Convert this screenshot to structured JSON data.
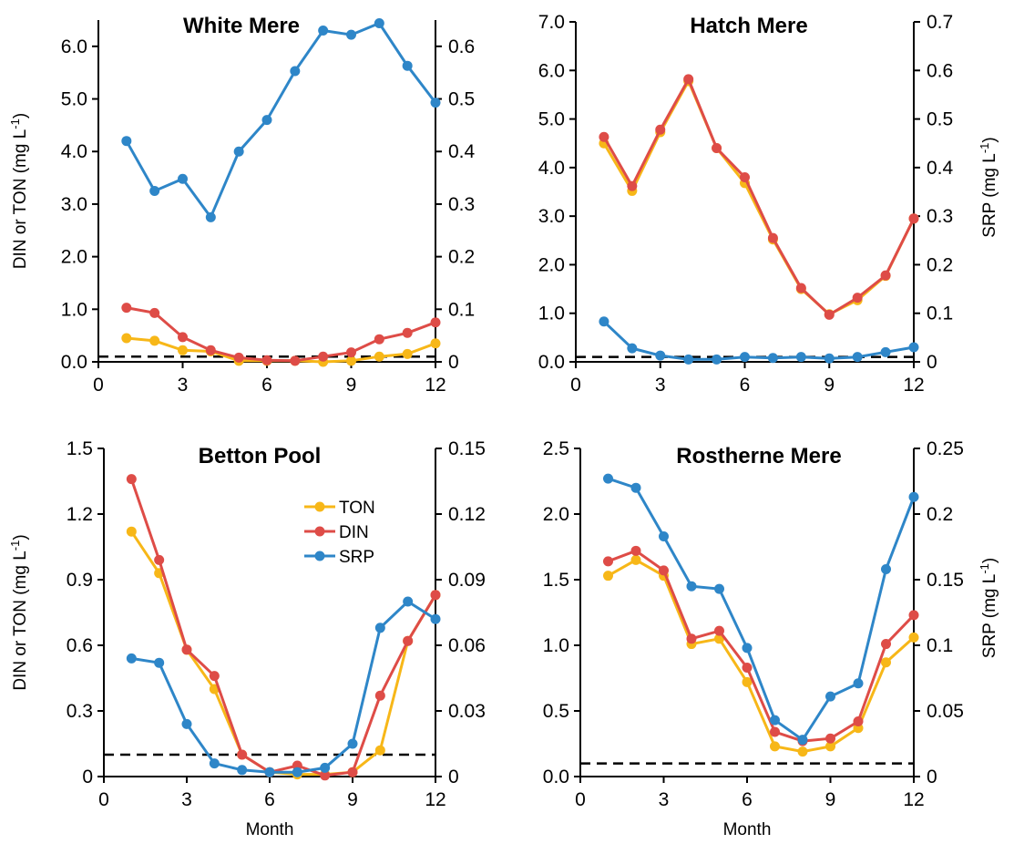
{
  "colors": {
    "TON": "#F7B718",
    "DIN": "#DE4C47",
    "SRP": "#2E86C8",
    "threshold": "#000000"
  },
  "chart_data": [
    {
      "type": "line",
      "title": "White Mere",
      "xlabel": "",
      "ylabel_left": "DIN or TON (mg L",
      "ylabel_left_sup": "-1",
      "ylabel_left_end": ")",
      "ylabel_right": "",
      "ylabel_right_sup": "",
      "ylabel_right_end": "",
      "xlim": [
        0,
        12
      ],
      "xticks": [
        "0",
        "3",
        "6",
        "9",
        "12"
      ],
      "ylim_left": [
        0,
        6.5
      ],
      "yticks_left": [
        "0.0",
        "1.0",
        "2.0",
        "3.0",
        "4.0",
        "5.0",
        "6.0"
      ],
      "ylim_right": [
        0,
        0.65
      ],
      "yticks_right": [
        "0",
        "0.1",
        "0.2",
        "0.3",
        "0.4",
        "0.5",
        "0.6"
      ],
      "threshold_left": 0.1,
      "x": [
        1,
        2,
        3,
        4,
        5,
        6,
        7,
        8,
        9,
        10,
        11,
        12
      ],
      "series": [
        {
          "name": "TON",
          "axis": "left",
          "values": [
            0.45,
            0.4,
            0.22,
            0.2,
            0.02,
            0.02,
            0.02,
            0.0,
            0.02,
            0.1,
            0.15,
            0.35
          ]
        },
        {
          "name": "DIN",
          "axis": "left",
          "values": [
            1.03,
            0.93,
            0.47,
            0.22,
            0.08,
            0.03,
            0.02,
            0.1,
            0.18,
            0.43,
            0.55,
            0.75
          ]
        },
        {
          "name": "SRP",
          "axis": "right",
          "values": [
            0.42,
            0.325,
            0.348,
            0.275,
            0.4,
            0.46,
            0.553,
            0.63,
            0.622,
            0.644,
            0.563,
            0.493
          ]
        }
      ]
    },
    {
      "type": "line",
      "title": "Hatch Mere",
      "xlabel": "",
      "ylabel_left": "",
      "ylabel_left_sup": "",
      "ylabel_left_end": "",
      "ylabel_right": "SRP (mg L",
      "ylabel_right_sup": "-1",
      "ylabel_right_end": ")",
      "xlim": [
        0,
        12
      ],
      "xticks": [
        "0",
        "3",
        "6",
        "9",
        "12"
      ],
      "ylim_left": [
        0,
        7
      ],
      "yticks_left": [
        "0.0",
        "1.0",
        "2.0",
        "3.0",
        "4.0",
        "5.0",
        "6.0",
        "7.0"
      ],
      "ylim_right": [
        0,
        0.7
      ],
      "yticks_right": [
        "0",
        "0.1",
        "0.2",
        "0.3",
        "0.4",
        "0.5",
        "0.6",
        "0.7"
      ],
      "threshold_left": 0.1,
      "x": [
        1,
        2,
        3,
        4,
        5,
        6,
        7,
        8,
        9,
        10,
        11,
        12
      ],
      "series": [
        {
          "name": "TON",
          "axis": "left",
          "values": [
            4.5,
            3.52,
            4.73,
            5.78,
            4.4,
            3.68,
            2.52,
            1.5,
            0.98,
            1.27,
            1.77,
            2.95
          ]
        },
        {
          "name": "DIN",
          "axis": "left",
          "values": [
            4.63,
            3.62,
            4.78,
            5.82,
            4.4,
            3.8,
            2.55,
            1.52,
            0.97,
            1.32,
            1.78,
            2.95
          ]
        },
        {
          "name": "SRP",
          "axis": "right",
          "values": [
            0.083,
            0.028,
            0.013,
            0.005,
            0.005,
            0.01,
            0.008,
            0.01,
            0.007,
            0.01,
            0.02,
            0.03
          ]
        }
      ]
    },
    {
      "type": "line",
      "title": "Betton Pool",
      "xlabel": "Month",
      "ylabel_left": "DIN or TON (mg L",
      "ylabel_left_sup": "-1",
      "ylabel_left_end": ")",
      "ylabel_right": "",
      "ylabel_right_sup": "",
      "ylabel_right_end": "",
      "xlim": [
        0,
        12
      ],
      "xticks": [
        "0",
        "3",
        "6",
        "9",
        "12"
      ],
      "ylim_left": [
        0,
        1.5
      ],
      "yticks_left": [
        "0",
        "0.3",
        "0.6",
        "0.9",
        "1.2",
        "1.5"
      ],
      "ylim_right": [
        0,
        0.15
      ],
      "yticks_right": [
        "0",
        "0.03",
        "0.06",
        "0.09",
        "0.12",
        "0.15"
      ],
      "threshold_left": 0.1,
      "legend": {
        "position": "top-right",
        "entries": [
          "TON",
          "DIN",
          "SRP"
        ]
      },
      "x": [
        1,
        2,
        3,
        4,
        5,
        6,
        7,
        8,
        9,
        10,
        11,
        12
      ],
      "series": [
        {
          "name": "TON",
          "axis": "left",
          "values": [
            1.12,
            0.93,
            0.58,
            0.4,
            0.1,
            0.02,
            0.01,
            0.01,
            0.02,
            0.12,
            0.62,
            0.83
          ]
        },
        {
          "name": "DIN",
          "axis": "left",
          "values": [
            1.36,
            0.99,
            0.58,
            0.46,
            0.1,
            0.02,
            0.05,
            0.005,
            0.02,
            0.37,
            0.62,
            0.83
          ]
        },
        {
          "name": "SRP",
          "axis": "right",
          "values": [
            0.054,
            0.052,
            0.024,
            0.006,
            0.003,
            0.002,
            0.002,
            0.004,
            0.015,
            0.068,
            0.08,
            0.072
          ]
        }
      ]
    },
    {
      "type": "line",
      "title": "Rostherne Mere",
      "xlabel": "Month",
      "ylabel_left": "",
      "ylabel_left_sup": "",
      "ylabel_left_end": "",
      "ylabel_right": "SRP (mg L",
      "ylabel_right_sup": "-1",
      "ylabel_right_end": ")",
      "xlim": [
        0,
        12
      ],
      "xticks": [
        "0",
        "3",
        "6",
        "9",
        "12"
      ],
      "ylim_left": [
        0,
        2.5
      ],
      "yticks_left": [
        "0.0",
        "0.5",
        "1.0",
        "1.5",
        "2.0",
        "2.5"
      ],
      "ylim_right": [
        0,
        0.25
      ],
      "yticks_right": [
        "0",
        "0.05",
        "0.1",
        "0.15",
        "0.2",
        "0.25"
      ],
      "threshold_left": 0.1,
      "x": [
        1,
        2,
        3,
        4,
        5,
        6,
        7,
        8,
        9,
        10,
        11,
        12
      ],
      "series": [
        {
          "name": "TON",
          "axis": "left",
          "values": [
            1.53,
            1.65,
            1.53,
            1.01,
            1.05,
            0.72,
            0.23,
            0.19,
            0.23,
            0.37,
            0.87,
            1.06
          ]
        },
        {
          "name": "DIN",
          "axis": "left",
          "values": [
            1.64,
            1.72,
            1.57,
            1.05,
            1.11,
            0.83,
            0.34,
            0.27,
            0.29,
            0.42,
            1.01,
            1.23
          ]
        },
        {
          "name": "SRP",
          "axis": "right",
          "values": [
            0.227,
            0.22,
            0.183,
            0.145,
            0.143,
            0.098,
            0.043,
            0.028,
            0.061,
            0.071,
            0.158,
            0.213
          ]
        }
      ]
    }
  ]
}
